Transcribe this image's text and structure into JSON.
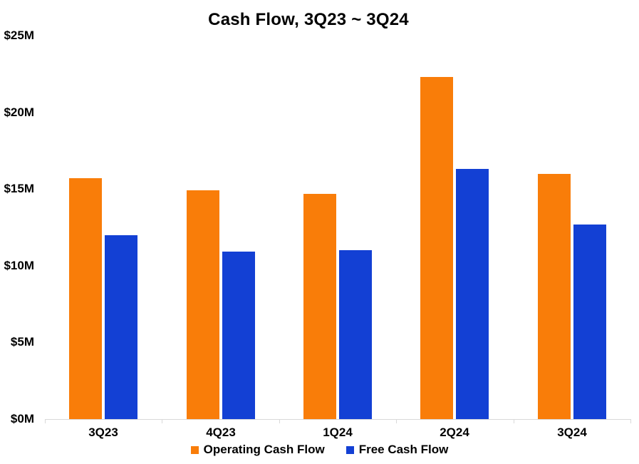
{
  "chart_data": {
    "type": "bar",
    "title": "Cash Flow, 3Q23 ~ 3Q24",
    "categories": [
      "3Q23",
      "4Q23",
      "1Q24",
      "2Q24",
      "3Q24"
    ],
    "series": [
      {
        "name": "Operating Cash Flow",
        "color": "#F97D09",
        "values": [
          15.7,
          14.9,
          14.7,
          22.3,
          16.0
        ]
      },
      {
        "name": "Free Cash Flow",
        "color": "#1340D4",
        "values": [
          12.0,
          10.9,
          11.0,
          16.3,
          12.7
        ]
      }
    ],
    "xlabel": "",
    "ylabel": "",
    "ylim": [
      0,
      25
    ],
    "ytick_step": 5,
    "ytick_labels": [
      "$0M",
      "$5M",
      "$10M",
      "$15M",
      "$20M",
      "$25M"
    ],
    "grid": false,
    "legend_position": "bottom",
    "axis_color": "#D9D9D9",
    "text_color": "#000000",
    "background": "#FFFFFF"
  }
}
